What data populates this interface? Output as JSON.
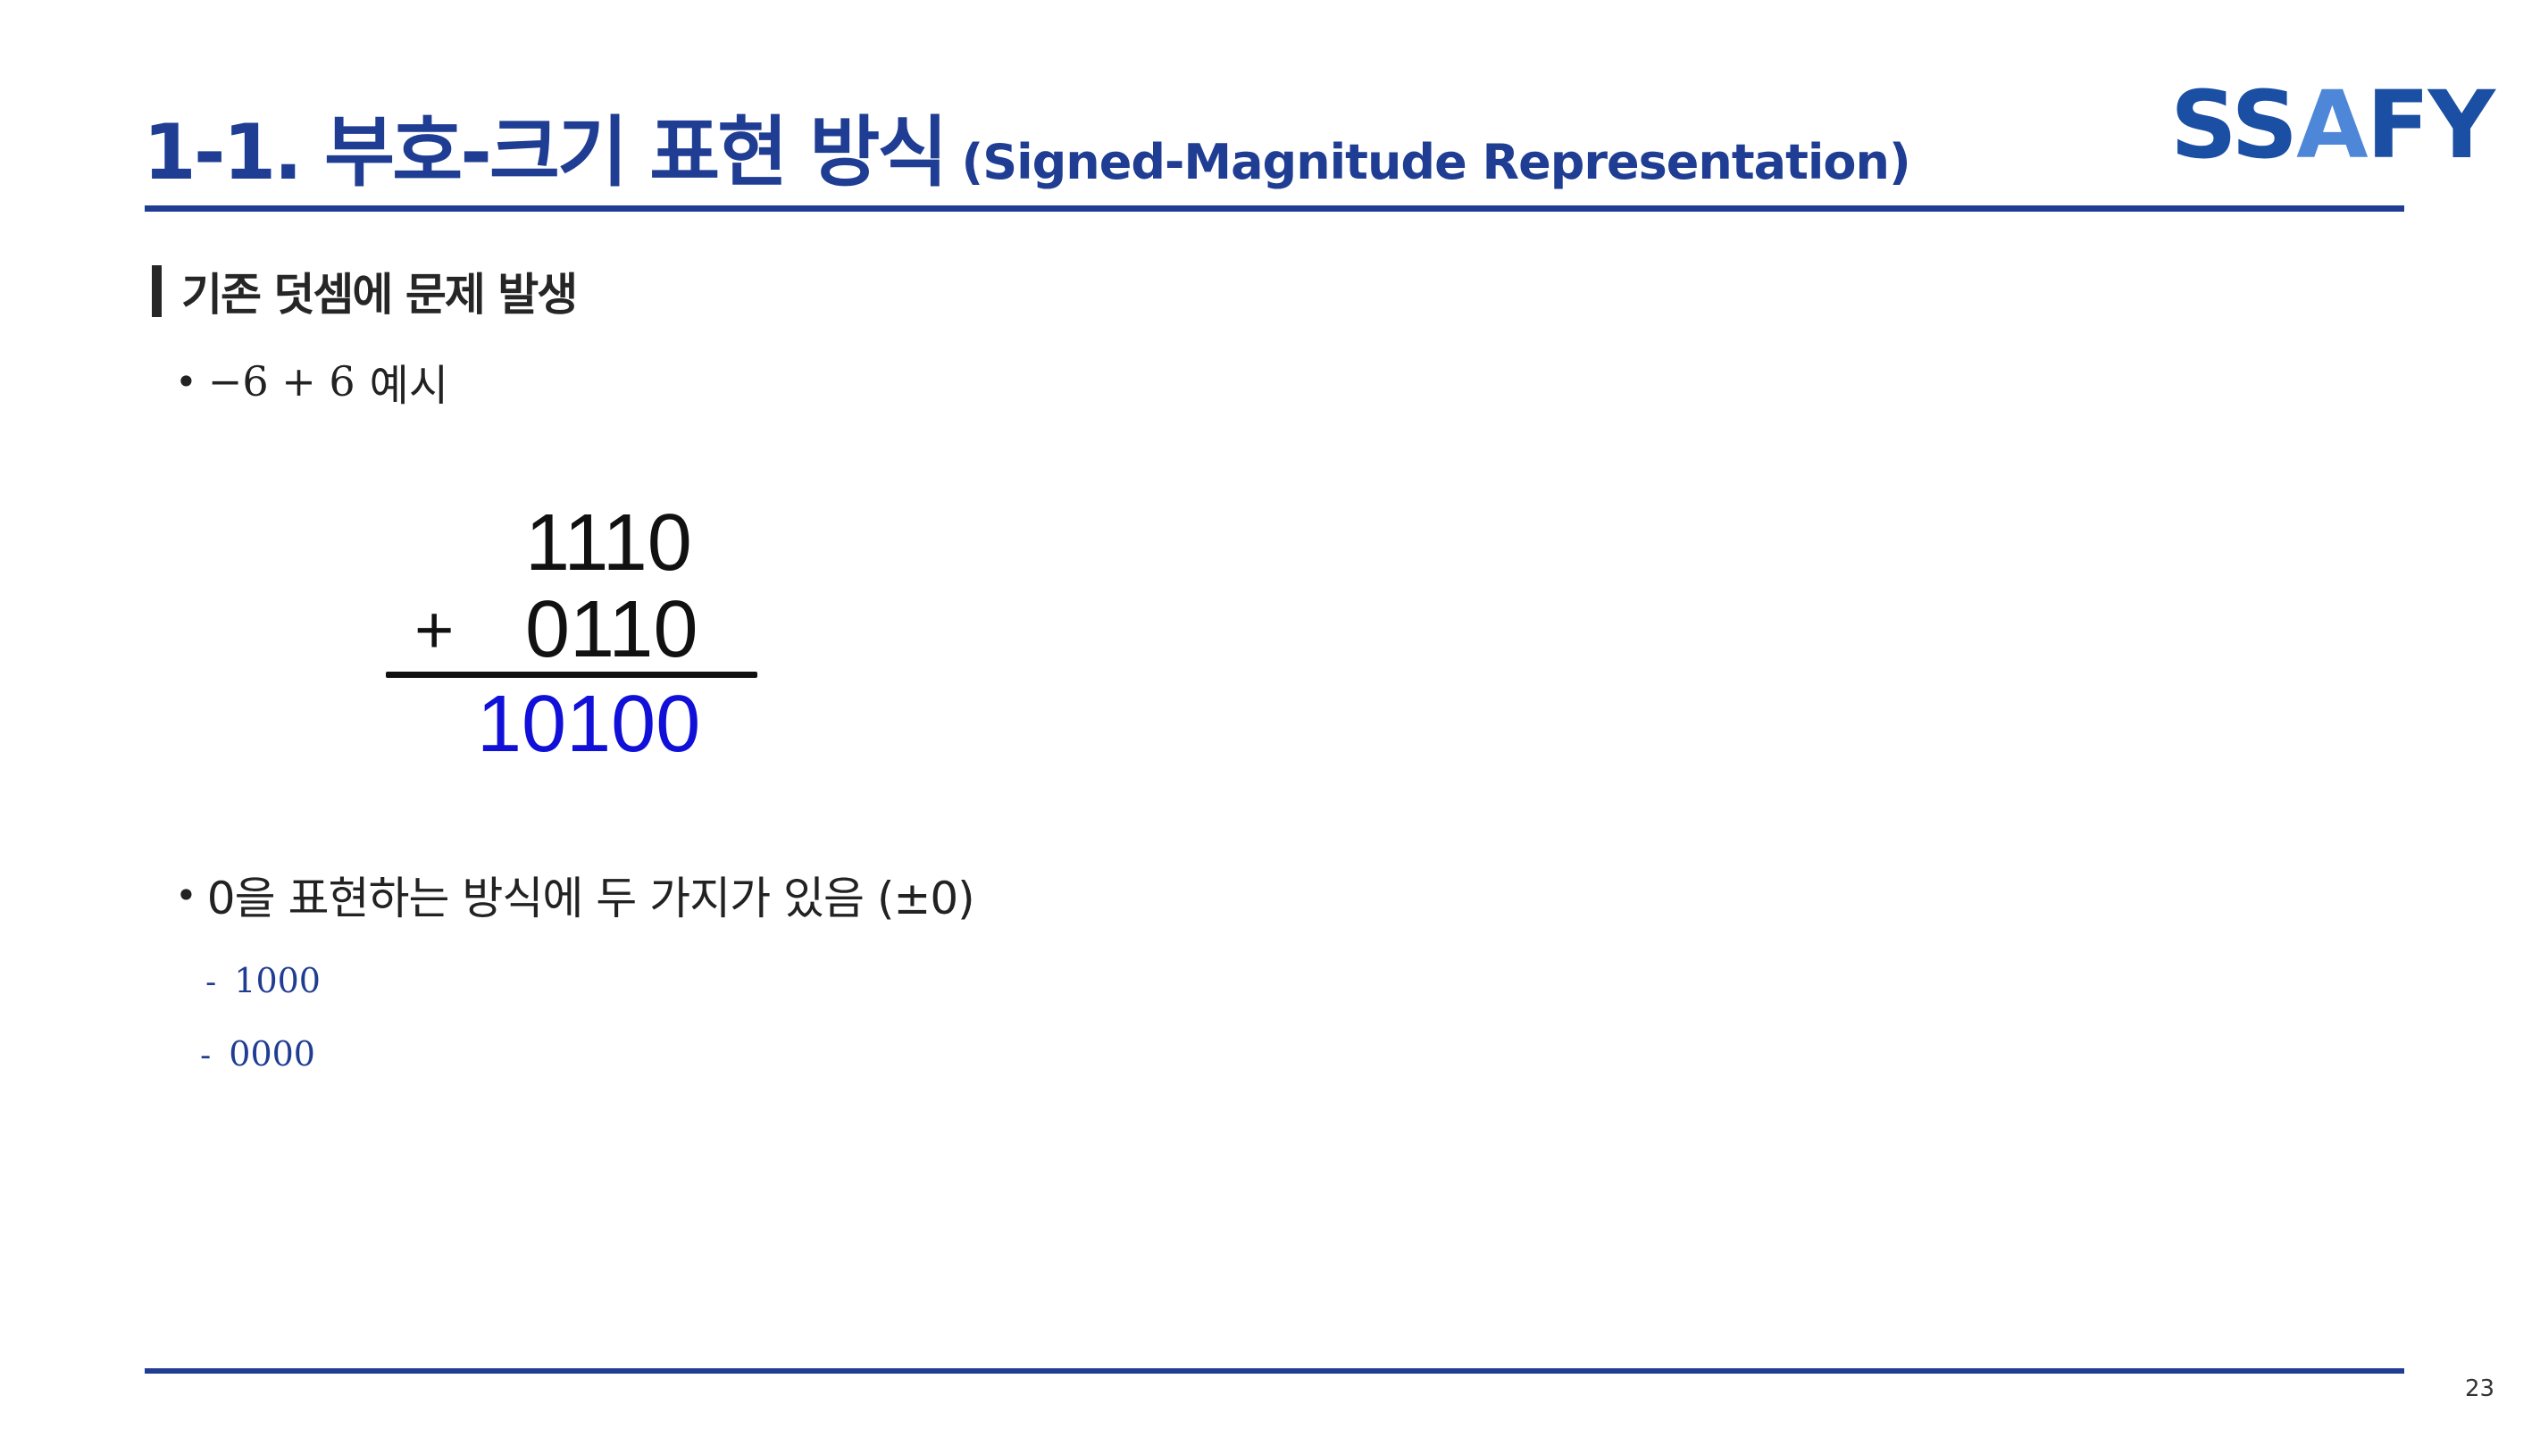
{
  "header": {
    "title": "1-1. 부호-크기 표현 방식",
    "subtitle": "(Signed-Magnitude Representation)"
  },
  "logo": {
    "part1": "SS",
    "part2": "A",
    "part3": "FY"
  },
  "section": {
    "heading": "기존 덧셈에 문제 발생"
  },
  "bullets": [
    {
      "dot": "•",
      "math": "−6 + 6",
      "text": "예시"
    },
    {
      "dot": "•",
      "text": "0을 표현하는 방식에 두 가지가 있음 (±0)"
    }
  ],
  "calculation": {
    "operand1": "1110",
    "operator": "+",
    "operand2": "0110",
    "result": "10100"
  },
  "zero_representations": [
    {
      "dash": "-",
      "value": "1000"
    },
    {
      "dash": "-",
      "value": "0000"
    }
  ],
  "footer": {
    "page_number": "23"
  },
  "colors": {
    "title": "#1f3d93",
    "logo_primary": "#1a4fa3",
    "logo_accent": "#4f87d8",
    "result": "#1010d8",
    "text": "#222222"
  }
}
